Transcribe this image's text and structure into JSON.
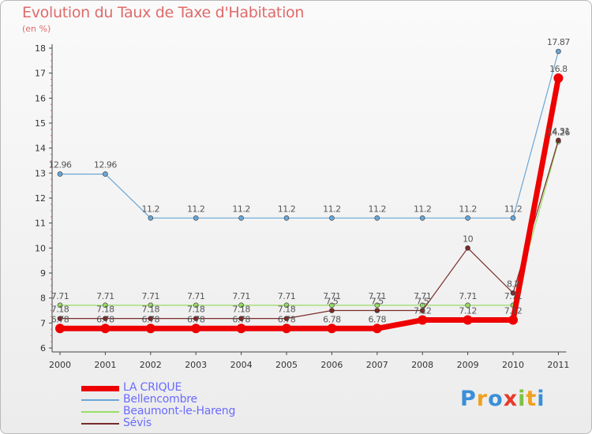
{
  "title": "Evolution du Taux de Taxe d'Habitation",
  "unit": "(en %)",
  "logo": {
    "parts": [
      {
        "text": "P",
        "color": "#3a8fd8"
      },
      {
        "text": "r",
        "color": "#f0a020"
      },
      {
        "text": "o",
        "color": "#3a8fd8"
      },
      {
        "text": "x",
        "color": "#e8392a"
      },
      {
        "text": "i",
        "color": "#7cc242"
      },
      {
        "text": "t",
        "color": "#f0a020"
      },
      {
        "text": "i",
        "color": "#3a8fd8"
      }
    ]
  },
  "chart_data": {
    "type": "line",
    "x": [
      "2000",
      "2001",
      "2002",
      "2003",
      "2004",
      "2005",
      "2006",
      "2007",
      "2008",
      "2009",
      "2010",
      "2011"
    ],
    "ylim": [
      6,
      18
    ],
    "yticks": [
      "6",
      "7",
      "8",
      "9",
      "10",
      "11",
      "12",
      "13",
      "14",
      "15",
      "16",
      "17",
      "18"
    ],
    "grid": false,
    "legend_position": "bottom-left",
    "series": [
      {
        "name": "LA CRIQUE",
        "color": "#ee0000",
        "width": 7,
        "marker": 6,
        "values": [
          6.78,
          6.78,
          6.78,
          6.78,
          6.78,
          6.78,
          6.78,
          6.78,
          7.12,
          7.12,
          7.12,
          16.8
        ],
        "labels": [
          "6.78",
          "6.78",
          "6.78",
          "6.78",
          "6.78",
          "6.78",
          "6.78",
          "6.78",
          "7.12",
          "7.12",
          "7.12",
          "16.8"
        ]
      },
      {
        "name": "Bellencombre",
        "color": "#6aa6d6",
        "width": 1.2,
        "marker": 3,
        "values": [
          12.96,
          12.96,
          11.2,
          11.2,
          11.2,
          11.2,
          11.2,
          11.2,
          11.2,
          11.2,
          11.2,
          17.87
        ],
        "labels": [
          "12.96",
          "12.96",
          "11.2",
          "11.2",
          "11.2",
          "11.2",
          "11.2",
          "11.2",
          "11.2",
          "11.2",
          "11.2",
          "17.87"
        ]
      },
      {
        "name": "Beaumont-le-Hareng",
        "color": "#99dd66",
        "width": 1.2,
        "marker": 3,
        "values": [
          7.71,
          7.71,
          7.71,
          7.71,
          7.71,
          7.71,
          7.71,
          7.71,
          7.71,
          7.71,
          7.71,
          14.26
        ],
        "labels": [
          "7.71",
          "7.71",
          "7.71",
          "7.71",
          "7.71",
          "7.71",
          "7.71",
          "7.71",
          "7.71",
          "7.71",
          "7.71",
          "14.26"
        ]
      },
      {
        "name": "Sévis",
        "color": "#7a2a2a",
        "width": 1.2,
        "marker": 3,
        "values": [
          7.18,
          7.18,
          7.18,
          7.18,
          7.18,
          7.18,
          7.5,
          7.5,
          7.5,
          10,
          8.2,
          14.31
        ],
        "labels": [
          "7.18",
          "7.18",
          "7.18",
          "7.18",
          "7.18",
          "7.18",
          "7.5",
          "7.5",
          "7.5",
          "10",
          "8.2",
          "14.31"
        ]
      }
    ]
  }
}
